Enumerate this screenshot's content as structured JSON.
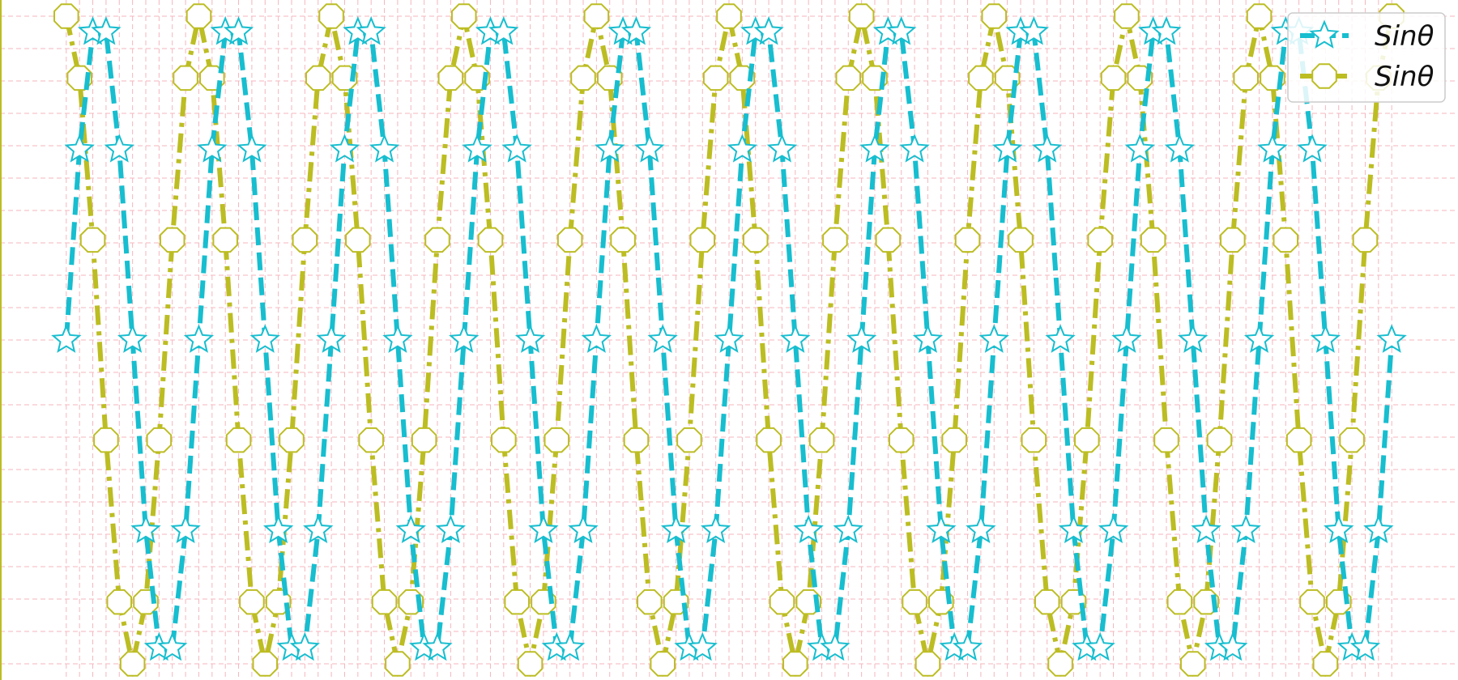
{
  "chart_data": {
    "type": "line",
    "title": "",
    "xlabel": "",
    "ylabel": "",
    "grid": true,
    "legend_position": "top-right",
    "xlim": [
      -0.05,
      1.05
    ],
    "ylim": [
      -1.05,
      1.05
    ],
    "series": [
      {
        "name": "Sinθ",
        "color": "#17becf",
        "line_style": "dashed",
        "marker": "star",
        "x": [
          0,
          0.01,
          0.02,
          0.03,
          0.04,
          0.05,
          0.06,
          0.07,
          0.08,
          0.09,
          0.1,
          0.11,
          0.12,
          0.13,
          0.14,
          0.15,
          0.16,
          0.17,
          0.18,
          0.19,
          0.2,
          0.21,
          0.22,
          0.23,
          0.24,
          0.25,
          0.26,
          0.27,
          0.28,
          0.29,
          0.3,
          0.31,
          0.32,
          0.33,
          0.34,
          0.35,
          0.36,
          0.37,
          0.38,
          0.39,
          0.4,
          0.41,
          0.42,
          0.43,
          0.44,
          0.45,
          0.46,
          0.47,
          0.48,
          0.49,
          0.5,
          0.51,
          0.52,
          0.53,
          0.54,
          0.55,
          0.56,
          0.57,
          0.58,
          0.59,
          0.6,
          0.61,
          0.62,
          0.63,
          0.64,
          0.65,
          0.66,
          0.67,
          0.68,
          0.69,
          0.7,
          0.71,
          0.72,
          0.73,
          0.74,
          0.75,
          0.76,
          0.77,
          0.78,
          0.79,
          0.8,
          0.81,
          0.82,
          0.83,
          0.84,
          0.85,
          0.86,
          0.87,
          0.88,
          0.89,
          0.9,
          0.91,
          0.92,
          0.93,
          0.94,
          0.95,
          0.96,
          0.97,
          0.98,
          0.99,
          1.0
        ],
        "y": [
          0,
          0.588,
          0.951,
          0.951,
          0.588,
          0,
          -0.588,
          -0.951,
          -0.951,
          -0.588,
          0,
          0.588,
          0.951,
          0.951,
          0.588,
          0,
          -0.588,
          -0.951,
          -0.951,
          -0.588,
          0,
          0.588,
          0.951,
          0.951,
          0.588,
          0,
          -0.588,
          -0.951,
          -0.951,
          -0.588,
          0,
          0.588,
          0.951,
          0.951,
          0.588,
          0,
          -0.588,
          -0.951,
          -0.951,
          -0.588,
          0,
          0.588,
          0.951,
          0.951,
          0.588,
          0,
          -0.588,
          -0.951,
          -0.951,
          -0.588,
          0,
          0.588,
          0.951,
          0.951,
          0.588,
          0,
          -0.588,
          -0.951,
          -0.951,
          -0.588,
          0,
          0.588,
          0.951,
          0.951,
          0.588,
          0,
          -0.588,
          -0.951,
          -0.951,
          -0.588,
          0,
          0.588,
          0.951,
          0.951,
          0.588,
          0,
          -0.588,
          -0.951,
          -0.951,
          -0.588,
          0,
          0.588,
          0.951,
          0.951,
          0.588,
          0,
          -0.588,
          -0.951,
          -0.951,
          -0.588,
          0,
          0.588,
          0.951,
          0.951,
          0.588,
          0,
          -0.588,
          -0.951,
          -0.951,
          -0.588,
          0
        ]
      },
      {
        "name": "Sinθ",
        "color": "#bcbd22",
        "line_style": "dashdot",
        "marker": "octagon",
        "x": [
          0,
          0.01,
          0.02,
          0.03,
          0.04,
          0.05,
          0.06,
          0.07,
          0.08,
          0.09,
          0.1,
          0.11,
          0.12,
          0.13,
          0.14,
          0.15,
          0.16,
          0.17,
          0.18,
          0.19,
          0.2,
          0.21,
          0.22,
          0.23,
          0.24,
          0.25,
          0.26,
          0.27,
          0.28,
          0.29,
          0.3,
          0.31,
          0.32,
          0.33,
          0.34,
          0.35,
          0.36,
          0.37,
          0.38,
          0.39,
          0.4,
          0.41,
          0.42,
          0.43,
          0.44,
          0.45,
          0.46,
          0.47,
          0.48,
          0.49,
          0.5,
          0.51,
          0.52,
          0.53,
          0.54,
          0.55,
          0.56,
          0.57,
          0.58,
          0.59,
          0.6,
          0.61,
          0.62,
          0.63,
          0.64,
          0.65,
          0.66,
          0.67,
          0.68,
          0.69,
          0.7,
          0.71,
          0.72,
          0.73,
          0.74,
          0.75,
          0.76,
          0.77,
          0.78,
          0.79,
          0.8,
          0.81,
          0.82,
          0.83,
          0.84,
          0.85,
          0.86,
          0.87,
          0.88,
          0.89,
          0.9,
          0.91,
          0.92,
          0.93,
          0.94,
          0.95,
          0.96,
          0.97,
          0.98,
          0.99,
          1.0
        ],
        "y": [
          1,
          0.809,
          0.309,
          -0.309,
          -0.809,
          -1,
          -0.809,
          -0.309,
          0.309,
          0.809,
          1,
          0.809,
          0.309,
          -0.309,
          -0.809,
          -1,
          -0.809,
          -0.309,
          0.309,
          0.809,
          1,
          0.809,
          0.309,
          -0.309,
          -0.809,
          -1,
          -0.809,
          -0.309,
          0.309,
          0.809,
          1,
          0.809,
          0.309,
          -0.309,
          -0.809,
          -1,
          -0.809,
          -0.309,
          0.309,
          0.809,
          1,
          0.809,
          0.309,
          -0.309,
          -0.809,
          -1,
          -0.809,
          -0.309,
          0.309,
          0.809,
          1,
          0.809,
          0.309,
          -0.309,
          -0.809,
          -1,
          -0.809,
          -0.309,
          0.309,
          0.809,
          1,
          0.809,
          0.309,
          -0.309,
          -0.809,
          -1,
          -0.809,
          -0.309,
          0.309,
          0.809,
          1,
          0.809,
          0.309,
          -0.309,
          -0.809,
          -1,
          -0.809,
          -0.309,
          0.309,
          0.809,
          1,
          0.809,
          0.309,
          -0.309,
          -0.809,
          -1,
          -0.809,
          -0.309,
          0.309,
          0.809,
          1,
          0.809,
          0.309,
          -0.309,
          -0.809,
          -1,
          -0.809,
          -0.309,
          0.309,
          0.809,
          1
        ]
      }
    ]
  }
}
